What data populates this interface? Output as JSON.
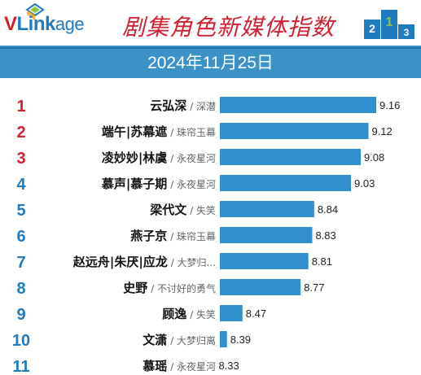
{
  "brand": {
    "logo_v": "V",
    "logo_link": "Link",
    "logo_age": "age",
    "colors": {
      "red": "#d1202f",
      "blue": "#1f7bbf",
      "bar": "#2f8fcf",
      "date_bg": "#3b92c6"
    }
  },
  "header": {
    "title": "剧集角色新媒体指数",
    "date": "2024年11月25日"
  },
  "chart_data": {
    "type": "bar",
    "orientation": "horizontal",
    "title": "剧集角色新媒体指数",
    "subtitle": "2024年11月25日",
    "rows": [
      {
        "rank": "1",
        "name": "云弘深",
        "drama": "深潜",
        "value": 9.16
      },
      {
        "rank": "2",
        "name": "端午|苏幕遮",
        "drama": "珠帘玉幕",
        "value": 9.12
      },
      {
        "rank": "3",
        "name": "凌妙妙|林虞",
        "drama": "永夜星河",
        "value": 9.08
      },
      {
        "rank": "4",
        "name": "慕声|慕子期",
        "drama": "永夜星河",
        "value": 9.03
      },
      {
        "rank": "5",
        "name": "梁代文",
        "drama": "失笑",
        "value": 8.84
      },
      {
        "rank": "6",
        "name": "燕子京",
        "drama": "珠帘玉幕",
        "value": 8.83
      },
      {
        "rank": "7",
        "name": "赵远舟|朱厌|应龙",
        "drama": "大梦归...",
        "value": 8.81
      },
      {
        "rank": "8",
        "name": "史野",
        "drama": "不讨好的勇气",
        "value": 8.77
      },
      {
        "rank": "9",
        "name": "顾逸",
        "drama": "失笑",
        "value": 8.47
      },
      {
        "rank": "10",
        "name": "文潇",
        "drama": "大梦归离",
        "value": 8.39
      },
      {
        "rank": "11",
        "name": "慕瑶",
        "drama": "永夜星河",
        "value": 8.33
      }
    ],
    "rank_colors": {
      "top3": "#d1202f",
      "rest": "#1f7bbf"
    },
    "bar_color": "#2f8fcf",
    "separator": "/",
    "value_labels": true
  }
}
